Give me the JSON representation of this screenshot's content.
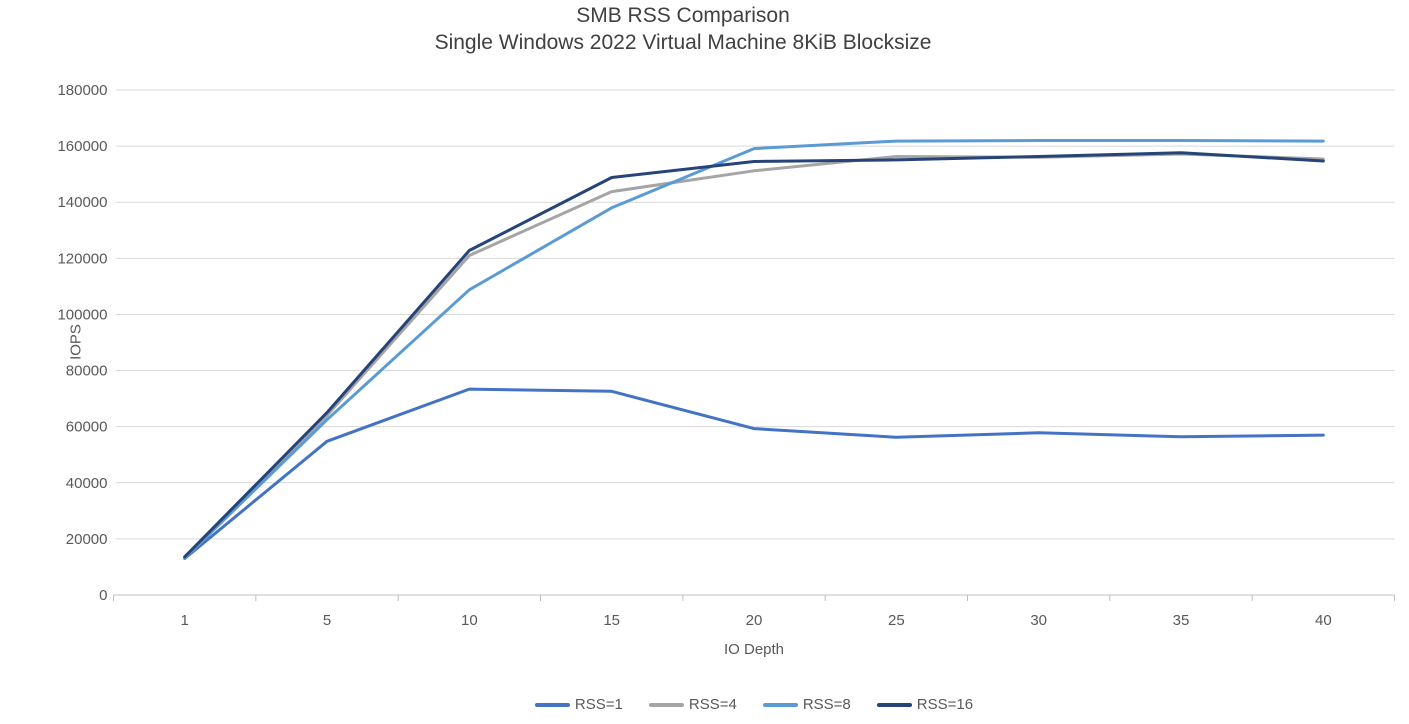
{
  "chart_data": {
    "type": "line",
    "title": "SMB RSS Comparison",
    "subtitle": "Single Windows 2022 Virtual Machine 8KiB Blocksize",
    "xlabel": "IO Depth",
    "ylabel": "IOPS",
    "categories": [
      1,
      5,
      10,
      15,
      20,
      25,
      30,
      35,
      40
    ],
    "series": [
      {
        "name": "RSS=1",
        "color": "#4472C4",
        "values": [
          13000,
          54800,
          73400,
          72600,
          59300,
          56200,
          57800,
          56400,
          57000
        ]
      },
      {
        "name": "RSS=4",
        "color": "#A5A5A5",
        "values": [
          13400,
          64000,
          121000,
          143800,
          151200,
          156300,
          156000,
          157200,
          155400
        ]
      },
      {
        "name": "RSS=8",
        "color": "#5B9BD5",
        "values": [
          13200,
          62500,
          108800,
          138000,
          159100,
          161800,
          162000,
          162000,
          161800
        ]
      },
      {
        "name": "RSS=16",
        "color": "#264478",
        "values": [
          13600,
          65000,
          122800,
          148800,
          154500,
          155100,
          156300,
          157600,
          154700
        ]
      }
    ],
    "ylim": [
      0,
      180000
    ],
    "ytick_step": 20000,
    "ytick_labels": [
      "0",
      "20000",
      "40000",
      "60000",
      "80000",
      "100000",
      "120000",
      "140000",
      "160000",
      "180000"
    ],
    "grid": true,
    "legend_position": "bottom",
    "colors": {
      "gridline": "#D9D9D9",
      "axis_line": "#BFBFBF",
      "tick_text": "#595959",
      "title_text": "#404040",
      "background": "#FFFFFF"
    }
  }
}
